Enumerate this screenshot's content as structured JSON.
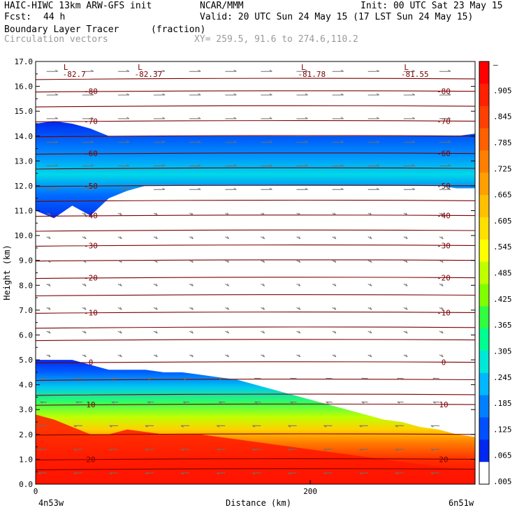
{
  "header": {
    "model": "HAIC-HIWC 13km ARW-GFS init",
    "center": "NCAR/MMM",
    "init": "Init: 00 UTC Sat 23 May 15",
    "fcst_label": "Fcst:",
    "fcst_value": "44 h",
    "valid": "Valid: 20 UTC Sun 24 May 15 (17 LST Sun 24 May 15)",
    "field": "Boundary Layer Tracer",
    "field_units": "(fraction)",
    "vectors": "Circulation vectors",
    "xy": "XY= 259.5, 91.6 to 274.6,110.2"
  },
  "chart_data": {
    "type": "heatmap",
    "title": "Boundary Layer Tracer",
    "xlabel": "Distance (km)",
    "ylabel": "Height (km)",
    "xlim": [
      0,
      320
    ],
    "ylim": [
      0.0,
      17.0
    ],
    "x_ticks": [
      {
        "value": 0,
        "label": "0"
      },
      {
        "value": 200,
        "label": "200"
      }
    ],
    "x_end_labels": {
      "left": "4n53w",
      "right": "6n51w"
    },
    "y_ticks": [
      0.0,
      1.0,
      2.0,
      3.0,
      4.0,
      5.0,
      6.0,
      7.0,
      8.0,
      9.0,
      10.0,
      11.0,
      12.0,
      13.0,
      14.0,
      15.0,
      16.0,
      17.0
    ],
    "y_tick_labels": [
      "0.0",
      "1.0",
      "2.0",
      "3.0",
      "4.0",
      "5.0",
      "6.0",
      "7.0",
      "8.0",
      "9.0",
      "10.0",
      "11.0",
      "12.0",
      "13.0",
      "14.0",
      "15.0",
      "16.0",
      "17.0"
    ],
    "colorbar": {
      "labels": [
        "–",
        ".905",
        ".845",
        ".785",
        ".725",
        ".665",
        ".605",
        ".545",
        ".485",
        ".425",
        ".365",
        ".305",
        ".245",
        ".185",
        ".125",
        ".065",
        ".005"
      ],
      "colors": [
        "#ff0000",
        "#ff2000",
        "#ff4000",
        "#ff6000",
        "#ff8000",
        "#ffa000",
        "#ffc000",
        "#ffe000",
        "#ffff00",
        "#c0ff00",
        "#80ff00",
        "#30ff40",
        "#00ff90",
        "#00e8d8",
        "#00b8ff",
        "#0080ff",
        "#0050ff",
        "#0028f0",
        "#ffffff"
      ]
    },
    "temperature_contours": [
      {
        "label": "-80",
        "height_km": 15.8
      },
      {
        "label": "-70",
        "height_km": 14.6
      },
      {
        "label": "-60",
        "height_km": 13.3
      },
      {
        "label": "-50",
        "height_km": 12.0
      },
      {
        "label": "-40",
        "height_km": 10.8
      },
      {
        "label": "-30",
        "height_km": 9.6
      },
      {
        "label": "-20",
        "height_km": 8.3
      },
      {
        "label": "-10",
        "height_km": 6.9
      },
      {
        "label": "0",
        "height_km": 4.9
      },
      {
        "label": "10",
        "height_km": 3.2
      },
      {
        "label": "20",
        "height_km": 1.0
      }
    ],
    "extra_contour_heights_km": [
      16.3,
      15.2,
      14.0,
      12.7,
      11.4,
      10.2,
      9.0,
      7.6,
      6.3,
      5.8,
      4.2,
      3.6,
      2.0,
      0.6
    ],
    "minima": [
      {
        "symbol": "L",
        "value": "-82.7",
        "x_km": 22
      },
      {
        "symbol": "L",
        "value": "-82.37",
        "x_km": 76
      },
      {
        "symbol": "L",
        "value": "-81.78",
        "x_km": 195
      },
      {
        "symbol": "L",
        "value": "-81.55",
        "x_km": 270
      }
    ],
    "upper_tracer_layer": {
      "base_km": [
        11.0,
        10.7,
        11.2,
        10.8,
        11.5,
        11.8,
        12.0,
        12.0,
        12.0,
        12.0,
        12.0,
        12.0,
        12.0,
        12.0,
        12.0,
        12.0,
        12.0,
        12.0,
        12.0,
        12.0,
        12.0,
        12.0,
        12.0,
        11.9,
        11.9
      ],
      "top_km": [
        14.5,
        14.6,
        14.5,
        14.3,
        14.0,
        14.0,
        14.0,
        14.0,
        14.0,
        14.0,
        14.0,
        14.0,
        14.0,
        14.0,
        14.0,
        14.0,
        14.0,
        14.0,
        14.0,
        14.0,
        14.0,
        14.0,
        14.0,
        14.0,
        14.1
      ]
    },
    "boundary_layer_top_km": [
      5.0,
      5.0,
      5.0,
      4.8,
      4.6,
      4.6,
      4.6,
      4.5,
      4.5,
      4.4,
      4.3,
      4.2,
      4.0,
      3.8,
      3.6,
      3.4,
      3.2,
      3.0,
      2.8,
      2.6,
      2.5,
      2.3,
      2.2,
      2.0,
      1.9
    ],
    "red_layer_top_km": [
      2.8,
      2.6,
      2.3,
      2.0,
      2.0,
      2.2,
      2.1,
      2.0,
      2.0,
      2.0,
      1.9,
      1.8,
      1.7,
      1.6,
      1.5,
      1.4,
      1.3,
      1.2,
      1.1,
      1.0,
      0.9,
      0.8,
      0.7,
      0.6,
      0.5
    ]
  }
}
